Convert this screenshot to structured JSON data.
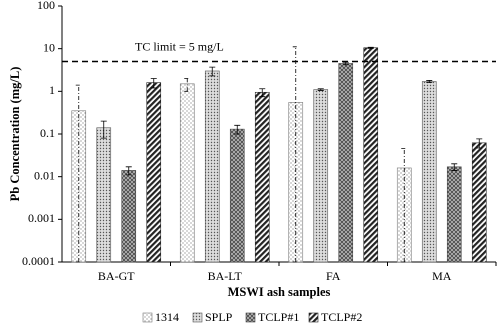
{
  "chart_data": {
    "type": "bar",
    "x_label": "MSWI ash samples",
    "y_label": "Pb Concentration (mg/L)",
    "log_scale": true,
    "ylim": [
      0.0001,
      100
    ],
    "yticks": [
      0.0001,
      0.001,
      0.01,
      0.1,
      1,
      10,
      100
    ],
    "categories": [
      "BA-GT",
      "BA-LT",
      "FA",
      "MA"
    ],
    "series": [
      {
        "name": "1314",
        "color": "#777777",
        "pattern": "dots-sparse",
        "values": [
          0.35,
          1.5,
          0.55,
          0.016
        ],
        "errors": [
          1.05,
          0.5,
          10.5,
          0.03
        ]
      },
      {
        "name": "SPLP",
        "color": "#555555",
        "pattern": "dots-dense",
        "values": [
          0.14,
          3.0,
          1.1,
          1.7
        ],
        "errors": [
          0.06,
          0.7,
          0.05,
          0.1
        ]
      },
      {
        "name": "TCLP#1",
        "color": "#444444",
        "pattern": "crosshatch",
        "values": [
          0.014,
          0.13,
          4.5,
          0.017
        ],
        "errors": [
          0.003,
          0.03,
          0.3,
          0.003
        ]
      },
      {
        "name": "TCLP#2",
        "color": "#222222",
        "pattern": "stripes",
        "values": [
          1.6,
          0.95,
          10.5,
          0.062
        ],
        "errors": [
          0.4,
          0.2,
          0.3,
          0.015
        ]
      }
    ],
    "reference_line": {
      "value": 5,
      "label": "TC limit = 5 mg/L"
    },
    "legend": "bottom"
  }
}
